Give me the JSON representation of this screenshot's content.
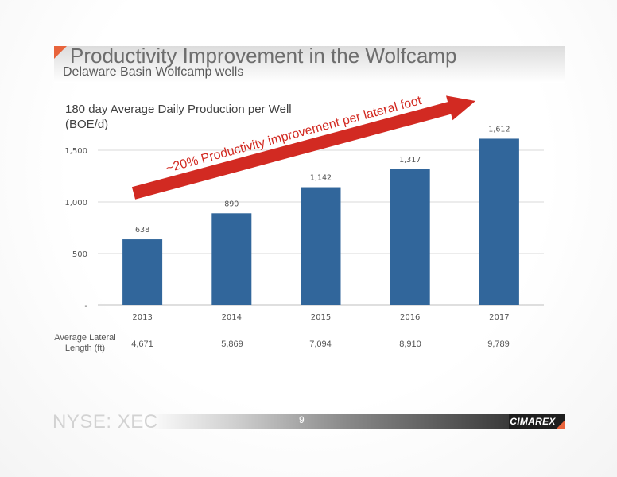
{
  "slide": {
    "title": "Productivity Improvement in the Wolfcamp",
    "subtitle": "Delaware Basin Wolfcamp wells",
    "footer_left": "NYSE: XEC",
    "page_number": "9",
    "logo": "CIMAREX",
    "accent_color": "#e8643c"
  },
  "chart_data": {
    "type": "bar",
    "title_lines": [
      "180 day Average Daily Production per Well",
      "(BOE/d)"
    ],
    "categories": [
      "2013",
      "2014",
      "2015",
      "2016",
      "2017"
    ],
    "values": [
      638,
      890,
      1142,
      1317,
      1612
    ],
    "value_labels": [
      "638",
      "890",
      "1,142",
      "1,317",
      "1,612"
    ],
    "ylim": [
      0,
      1700
    ],
    "yticks": [
      0,
      500,
      1000,
      1500
    ],
    "ytick_labels": [
      "-",
      "500",
      "1,000",
      "1,500"
    ],
    "bar_color": "#31669b",
    "grid": true,
    "annotation": {
      "text": "~20% Productivity improvement per lateral foot",
      "color": "#d22a22"
    },
    "lateral_length": {
      "label_lines": [
        "Average Lateral",
        "Length (ft)"
      ],
      "values": [
        "4,671",
        "5,869",
        "7,094",
        "8,910",
        "9,789"
      ]
    }
  }
}
